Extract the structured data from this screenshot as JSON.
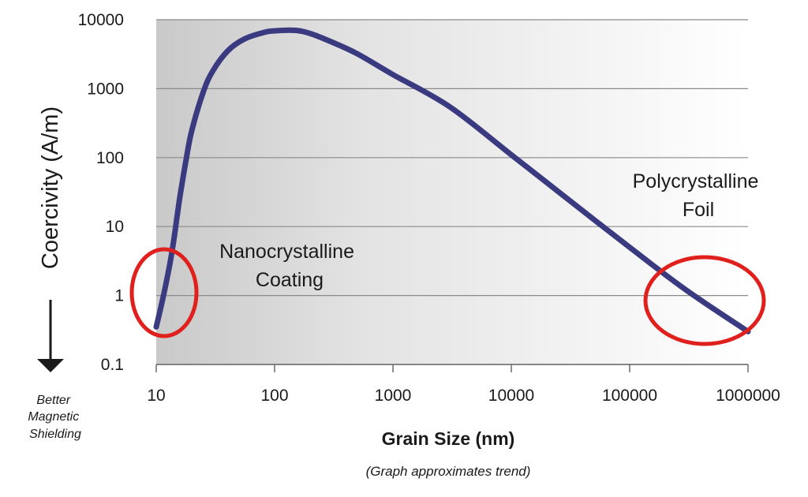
{
  "chart_data": {
    "type": "line",
    "xlabel": "Grain Size (nm)",
    "ylabel": "Coercivity (A/m)",
    "xscale": "log",
    "yscale": "log",
    "xlim": [
      10,
      1000000
    ],
    "ylim": [
      0.1,
      10000
    ],
    "x_ticks": [
      "10",
      "100",
      "1000",
      "10000",
      "100000",
      "1000000"
    ],
    "y_ticks": [
      "0.1",
      "1",
      "10",
      "100",
      "1000",
      "10000"
    ],
    "grid": "horizontal",
    "series": [
      {
        "color": "#3a3a80",
        "points": [
          [
            10,
            0.35
          ],
          [
            11,
            0.7
          ],
          [
            12,
            1.4
          ],
          [
            13,
            2.8
          ],
          [
            14,
            6
          ],
          [
            15,
            14
          ],
          [
            16,
            30
          ],
          [
            18,
            100
          ],
          [
            20,
            250
          ],
          [
            25,
            900
          ],
          [
            30,
            1800
          ],
          [
            40,
            3500
          ],
          [
            55,
            5200
          ],
          [
            80,
            6500
          ],
          [
            100,
            6900
          ],
          [
            150,
            7000
          ],
          [
            200,
            6300
          ],
          [
            300,
            4800
          ],
          [
            500,
            3200
          ],
          [
            1000,
            1600
          ],
          [
            3000,
            550
          ],
          [
            10000,
            110
          ],
          [
            30000,
            25
          ],
          [
            100000,
            5
          ],
          [
            300000,
            1.2
          ],
          [
            1000000,
            0.3
          ]
        ]
      }
    ],
    "annotations": [
      {
        "text": "Nanocrystalline\nCoating",
        "region": "fine grain (~10 nm)"
      },
      {
        "text": "Polycrystalline\nFoil",
        "region": "coarse grain (~1000000 nm)"
      }
    ],
    "circle_color": "#e0201d",
    "arrow_label": "Better\nMagnetic\nShielding",
    "note": "(Graph approximates trend)"
  }
}
